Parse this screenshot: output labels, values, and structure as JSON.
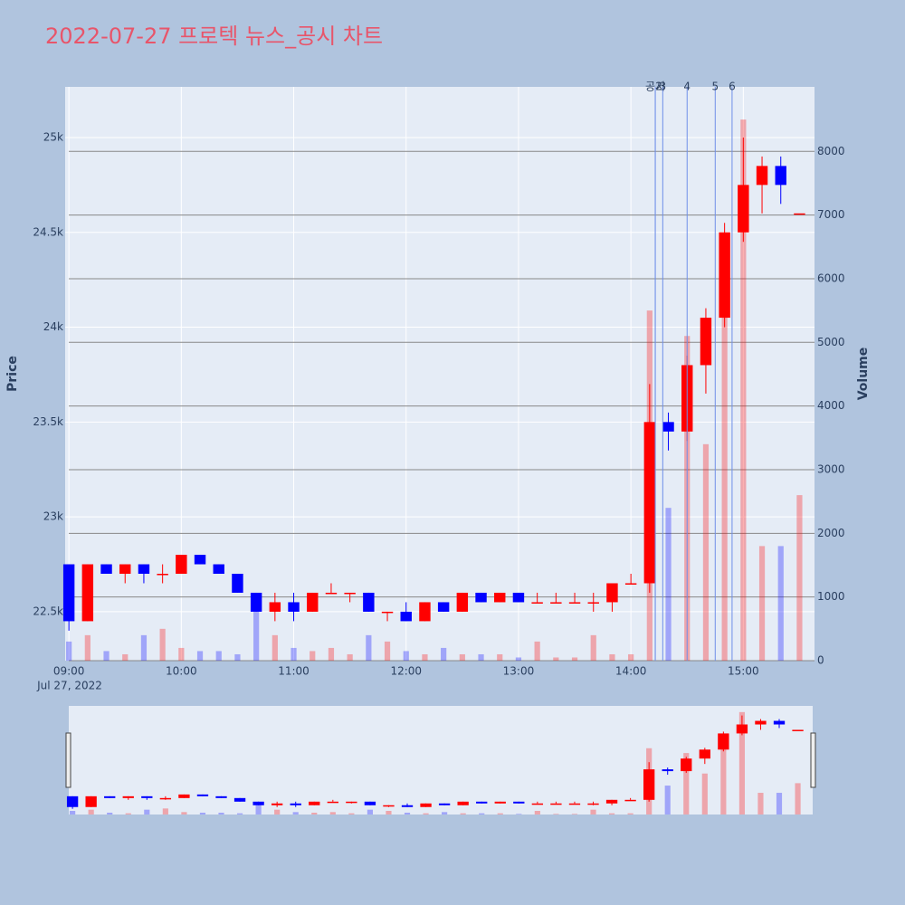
{
  "chart_data": {
    "type": "candlestick",
    "title": "2022-07-27 프로텍 뉴스_공시 차트",
    "x_date_label": "Jul 27, 2022",
    "ylabel": "Price",
    "y2label": "Volume",
    "x": [
      "09:00",
      "09:10",
      "09:20",
      "09:30",
      "09:40",
      "09:50",
      "10:00",
      "10:10",
      "10:20",
      "10:30",
      "10:40",
      "10:50",
      "11:00",
      "11:10",
      "11:20",
      "11:30",
      "11:40",
      "11:50",
      "12:00",
      "12:10",
      "12:20",
      "12:30",
      "12:40",
      "12:50",
      "13:00",
      "13:10",
      "13:20",
      "13:30",
      "13:40",
      "13:50",
      "14:00",
      "14:10",
      "14:20",
      "14:30",
      "14:40",
      "14:50",
      "15:00",
      "15:10",
      "15:20",
      "15:30"
    ],
    "open": [
      22750,
      22450,
      22750,
      22700,
      22750,
      22700,
      22700,
      22800,
      22750,
      22700,
      22600,
      22500,
      22550,
      22500,
      22600,
      22600,
      22600,
      22500,
      22500,
      22450,
      22550,
      22500,
      22600,
      22550,
      22600,
      22550,
      22550,
      22550,
      22550,
      22550,
      22650,
      22650,
      23500,
      23450,
      23800,
      24050,
      24500,
      24750,
      24850,
      24600
    ],
    "high": [
      22750,
      22750,
      22750,
      22750,
      22750,
      22750,
      22800,
      22800,
      22750,
      22700,
      22600,
      22600,
      22600,
      22600,
      22650,
      22600,
      22600,
      22500,
      22550,
      22550,
      22550,
      22600,
      22600,
      22600,
      22600,
      22600,
      22600,
      22600,
      22600,
      22650,
      22700,
      23700,
      23550,
      23850,
      24100,
      24550,
      25000,
      24900,
      24900,
      24600
    ],
    "low": [
      22400,
      22450,
      22700,
      22650,
      22650,
      22650,
      22700,
      22750,
      22700,
      22600,
      22500,
      22450,
      22450,
      22500,
      22600,
      22550,
      22500,
      22450,
      22450,
      22450,
      22500,
      22500,
      22550,
      22550,
      22550,
      22550,
      22550,
      22550,
      22500,
      22500,
      22650,
      22600,
      23350,
      23400,
      23650,
      24000,
      24450,
      24600,
      24650,
      24600
    ],
    "close": [
      22450,
      22750,
      22700,
      22750,
      22700,
      22700,
      22800,
      22750,
      22700,
      22600,
      22500,
      22550,
      22500,
      22600,
      22600,
      22600,
      22500,
      22500,
      22450,
      22550,
      22500,
      22600,
      22550,
      22600,
      22550,
      22550,
      22550,
      22550,
      22550,
      22650,
      22650,
      23500,
      23450,
      23800,
      24050,
      24500,
      24750,
      24850,
      24750,
      24600
    ],
    "volume": [
      300,
      400,
      150,
      100,
      400,
      500,
      200,
      150,
      150,
      100,
      800,
      400,
      200,
      150,
      200,
      100,
      400,
      300,
      150,
      100,
      200,
      100,
      100,
      100,
      50,
      300,
      50,
      50,
      400,
      100,
      100,
      5500,
      2400,
      5100,
      3400,
      5900,
      8500,
      1800,
      1800,
      2600
    ],
    "xlim": [
      "08:58",
      "15:38"
    ],
    "xticks": [
      "09:00",
      "10:00",
      "11:00",
      "12:00",
      "13:00",
      "14:00",
      "15:00"
    ],
    "ylim": [
      22242,
      25267
    ],
    "yticks": [
      {
        "value": 22500,
        "label": "22.5k"
      },
      {
        "value": 23000,
        "label": "23k"
      },
      {
        "value": 23500,
        "label": "23.5k"
      },
      {
        "value": 24000,
        "label": "24k"
      },
      {
        "value": 24500,
        "label": "24.5k"
      },
      {
        "value": 25000,
        "label": "25k"
      }
    ],
    "y2lim": [
      0,
      9013
    ],
    "y2ticks": [
      0,
      1000,
      2000,
      3000,
      4000,
      5000,
      6000,
      7000,
      8000
    ],
    "up_color": "#ff0000",
    "down_color": "#0000ff",
    "annotations": [
      {
        "x": "14:13",
        "text": "공시"
      },
      {
        "x": "14:13",
        "text": "2"
      },
      {
        "x": "14:17",
        "text": "3"
      },
      {
        "x": "14:30",
        "text": "4"
      },
      {
        "x": "14:45",
        "text": "5"
      },
      {
        "x": "14:54",
        "text": "6"
      }
    ],
    "range_slider": true
  }
}
